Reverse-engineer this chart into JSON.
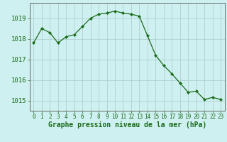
{
  "x": [
    0,
    1,
    2,
    3,
    4,
    5,
    6,
    7,
    8,
    9,
    10,
    11,
    12,
    13,
    14,
    15,
    16,
    17,
    18,
    19,
    20,
    21,
    22,
    23
  ],
  "y": [
    1017.8,
    1018.5,
    1018.3,
    1017.8,
    1018.1,
    1018.2,
    1018.6,
    1019.0,
    1019.2,
    1019.25,
    1019.35,
    1019.25,
    1019.2,
    1019.1,
    1018.15,
    1017.2,
    1016.7,
    1016.3,
    1015.85,
    1015.4,
    1015.45,
    1015.05,
    1015.15,
    1015.05
  ],
  "line_color": "#1a6b1a",
  "marker_color": "#1a6b1a",
  "bg_color": "#cff0f0",
  "grid_color": "#aacaca",
  "xlabel": "Graphe pression niveau de la mer (hPa)",
  "yticks": [
    1015,
    1016,
    1017,
    1018,
    1019
  ],
  "xticks": [
    0,
    1,
    2,
    3,
    4,
    5,
    6,
    7,
    8,
    9,
    10,
    11,
    12,
    13,
    14,
    15,
    16,
    17,
    18,
    19,
    20,
    21,
    22,
    23
  ],
  "ylim": [
    1014.5,
    1019.75
  ],
  "xlim": [
    -0.5,
    23.5
  ],
  "xlabel_color": "#1a6b1a",
  "tick_color": "#1a6b1a",
  "axis_color": "#666666",
  "xlabel_fontsize": 7.0,
  "ytick_fontsize": 6.5,
  "xtick_fontsize": 5.5
}
